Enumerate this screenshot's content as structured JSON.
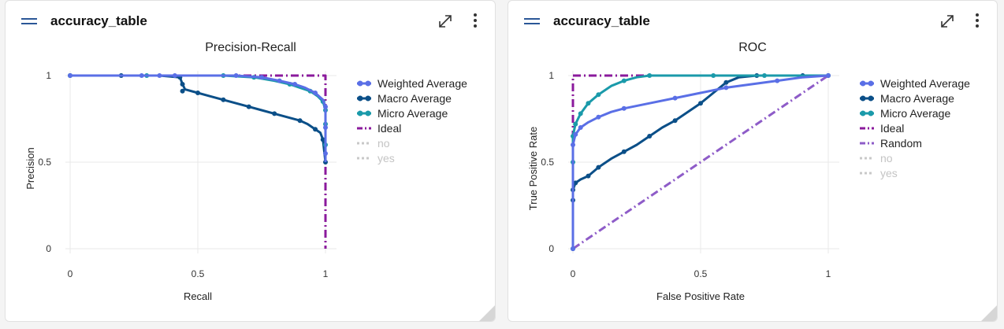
{
  "colors": {
    "weighted": "#5a6fe6",
    "macro": "#0b4f88",
    "micro": "#1a9aaa",
    "ideal": "#8b1a9c",
    "random": "#8e5cc8",
    "dim": "#c8c8c8"
  },
  "icons": {
    "menu": "menu-icon",
    "expand": "expand-icon",
    "more": "more-vertical-icon",
    "resize": "resize-handle-icon"
  },
  "cards": [
    {
      "header_title": "accuracy_table",
      "chart_data": {
        "type": "line",
        "title": "Precision-Recall",
        "xlabel": "Recall",
        "ylabel": "Precision",
        "xlim": [
          0,
          1
        ],
        "ylim": [
          0,
          1
        ],
        "xticks": [
          "0",
          "0.5",
          "1"
        ],
        "yticks": [
          "0",
          "0.5",
          "1"
        ],
        "grid": true,
        "legend_position": "right",
        "legend": [
          {
            "label": "Weighted Average",
            "style": "line-marker",
            "color_key": "weighted",
            "dim": false
          },
          {
            "label": "Macro Average",
            "style": "line-marker",
            "color_key": "macro",
            "dim": false
          },
          {
            "label": "Micro Average",
            "style": "line-marker",
            "color_key": "micro",
            "dim": false
          },
          {
            "label": "Ideal",
            "style": "dashdot",
            "color_key": "ideal",
            "dim": false
          },
          {
            "label": "no",
            "style": "dotted",
            "color_key": "dim",
            "dim": true
          },
          {
            "label": "yes",
            "style": "dotted",
            "color_key": "dim",
            "dim": true
          }
        ],
        "series": [
          {
            "name": "Ideal",
            "color_key": "ideal",
            "style": "dashdot",
            "points": [
              [
                0,
                1
              ],
              [
                1,
                1
              ],
              [
                1,
                0
              ]
            ]
          },
          {
            "name": "Macro Average",
            "color_key": "macro",
            "style": "line-marker",
            "points": [
              [
                0,
                1
              ],
              [
                0.2,
                1
              ],
              [
                0.35,
                1
              ],
              [
                0.43,
                0.99
              ],
              [
                0.44,
                0.95
              ],
              [
                0.45,
                0.92
              ],
              [
                0.5,
                0.9
              ],
              [
                0.55,
                0.88
              ],
              [
                0.6,
                0.86
              ],
              [
                0.65,
                0.84
              ],
              [
                0.7,
                0.82
              ],
              [
                0.75,
                0.8
              ],
              [
                0.8,
                0.78
              ],
              [
                0.85,
                0.76
              ],
              [
                0.9,
                0.74
              ],
              [
                0.93,
                0.72
              ],
              [
                0.96,
                0.69
              ],
              [
                0.98,
                0.67
              ],
              [
                0.99,
                0.63
              ],
              [
                1,
                0.5
              ]
            ],
            "markers": [
              [
                0,
                1
              ],
              [
                0.2,
                1
              ],
              [
                0.43,
                0.99
              ],
              [
                0.44,
                0.95
              ],
              [
                0.44,
                0.91
              ],
              [
                0.5,
                0.9
              ],
              [
                0.6,
                0.86
              ],
              [
                0.7,
                0.82
              ],
              [
                0.8,
                0.78
              ],
              [
                0.9,
                0.74
              ],
              [
                0.96,
                0.69
              ],
              [
                0.99,
                0.63
              ],
              [
                1,
                0.5
              ]
            ]
          },
          {
            "name": "Micro Average",
            "color_key": "micro",
            "style": "line-marker",
            "points": [
              [
                0,
                1
              ],
              [
                0.3,
                1
              ],
              [
                0.6,
                1
              ],
              [
                0.72,
                0.99
              ],
              [
                0.8,
                0.97
              ],
              [
                0.86,
                0.95
              ],
              [
                0.9,
                0.93
              ],
              [
                0.94,
                0.91
              ],
              [
                0.97,
                0.88
              ],
              [
                0.99,
                0.85
              ],
              [
                1,
                0.8
              ],
              [
                1,
                0.5
              ]
            ],
            "markers": [
              [
                0,
                1
              ],
              [
                0.3,
                1
              ],
              [
                0.6,
                1
              ],
              [
                0.72,
                0.99
              ],
              [
                0.86,
                0.95
              ],
              [
                0.94,
                0.91
              ],
              [
                0.99,
                0.85
              ],
              [
                1,
                0.8
              ],
              [
                1,
                0.72
              ],
              [
                1,
                0.6
              ]
            ]
          },
          {
            "name": "Weighted Average",
            "color_key": "weighted",
            "style": "line-marker",
            "points": [
              [
                0,
                1
              ],
              [
                0.3,
                1
              ],
              [
                0.65,
                1
              ],
              [
                0.75,
                0.99
              ],
              [
                0.82,
                0.97
              ],
              [
                0.88,
                0.95
              ],
              [
                0.92,
                0.93
              ],
              [
                0.96,
                0.9
              ],
              [
                0.99,
                0.86
              ],
              [
                1,
                0.82
              ],
              [
                1,
                0.5
              ]
            ],
            "markers": [
              [
                0,
                1
              ],
              [
                0.28,
                1
              ],
              [
                0.35,
                1
              ],
              [
                0.41,
                1
              ],
              [
                0.65,
                1
              ],
              [
                0.75,
                0.99
              ],
              [
                0.82,
                0.97
              ],
              [
                0.88,
                0.95
              ],
              [
                0.96,
                0.9
              ],
              [
                1,
                0.82
              ],
              [
                1,
                0.7
              ],
              [
                1,
                0.55
              ]
            ]
          }
        ]
      }
    },
    {
      "header_title": "accuracy_table",
      "chart_data": {
        "type": "line",
        "title": "ROC",
        "xlabel": "False Positive Rate",
        "ylabel": "True Positive Rate",
        "xlim": [
          0,
          1
        ],
        "ylim": [
          0,
          1
        ],
        "xticks": [
          "0",
          "0.5",
          "1"
        ],
        "yticks": [
          "0",
          "0.5",
          "1"
        ],
        "grid": true,
        "legend_position": "right",
        "legend": [
          {
            "label": "Weighted Average",
            "style": "line-marker",
            "color_key": "weighted",
            "dim": false
          },
          {
            "label": "Macro Average",
            "style": "line-marker",
            "color_key": "macro",
            "dim": false
          },
          {
            "label": "Micro Average",
            "style": "line-marker",
            "color_key": "micro",
            "dim": false
          },
          {
            "label": "Ideal",
            "style": "dashdot",
            "color_key": "ideal",
            "dim": false
          },
          {
            "label": "Random",
            "style": "dashdot",
            "color_key": "random",
            "dim": false
          },
          {
            "label": "no",
            "style": "dotted",
            "color_key": "dim",
            "dim": true
          },
          {
            "label": "yes",
            "style": "dotted",
            "color_key": "dim",
            "dim": true
          }
        ],
        "series": [
          {
            "name": "Random",
            "color_key": "random",
            "style": "dashdot",
            "points": [
              [
                0,
                0
              ],
              [
                1,
                1
              ]
            ]
          },
          {
            "name": "Ideal",
            "color_key": "ideal",
            "style": "dashdot",
            "points": [
              [
                0,
                0
              ],
              [
                0,
                1
              ],
              [
                1,
                1
              ]
            ]
          },
          {
            "name": "Macro Average",
            "color_key": "macro",
            "style": "line-marker",
            "points": [
              [
                0,
                0
              ],
              [
                0,
                0.28
              ],
              [
                0,
                0.34
              ],
              [
                0.01,
                0.38
              ],
              [
                0.03,
                0.4
              ],
              [
                0.06,
                0.42
              ],
              [
                0.1,
                0.47
              ],
              [
                0.15,
                0.52
              ],
              [
                0.2,
                0.56
              ],
              [
                0.25,
                0.6
              ],
              [
                0.3,
                0.65
              ],
              [
                0.35,
                0.7
              ],
              [
                0.4,
                0.74
              ],
              [
                0.45,
                0.79
              ],
              [
                0.5,
                0.84
              ],
              [
                0.55,
                0.9
              ],
              [
                0.6,
                0.96
              ],
              [
                0.65,
                0.99
              ],
              [
                0.72,
                1
              ],
              [
                1,
                1
              ]
            ],
            "markers": [
              [
                0,
                0
              ],
              [
                0,
                0.28
              ],
              [
                0,
                0.34
              ],
              [
                0.01,
                0.38
              ],
              [
                0.06,
                0.42
              ],
              [
                0.1,
                0.47
              ],
              [
                0.2,
                0.56
              ],
              [
                0.3,
                0.65
              ],
              [
                0.4,
                0.74
              ],
              [
                0.5,
                0.84
              ],
              [
                0.6,
                0.96
              ],
              [
                0.72,
                1
              ],
              [
                0.9,
                1
              ],
              [
                1,
                1
              ]
            ]
          },
          {
            "name": "Micro Average",
            "color_key": "micro",
            "style": "line-marker",
            "points": [
              [
                0,
                0
              ],
              [
                0,
                0.5
              ],
              [
                0,
                0.65
              ],
              [
                0.01,
                0.72
              ],
              [
                0.03,
                0.78
              ],
              [
                0.06,
                0.84
              ],
              [
                0.1,
                0.89
              ],
              [
                0.15,
                0.94
              ],
              [
                0.2,
                0.97
              ],
              [
                0.25,
                0.99
              ],
              [
                0.3,
                1
              ],
              [
                1,
                1
              ]
            ],
            "markers": [
              [
                0,
                0
              ],
              [
                0,
                0.5
              ],
              [
                0,
                0.65
              ],
              [
                0.01,
                0.72
              ],
              [
                0.03,
                0.78
              ],
              [
                0.06,
                0.84
              ],
              [
                0.1,
                0.89
              ],
              [
                0.2,
                0.97
              ],
              [
                0.3,
                1
              ],
              [
                0.55,
                1
              ],
              [
                0.75,
                1
              ],
              [
                1,
                1
              ]
            ]
          },
          {
            "name": "Weighted Average",
            "color_key": "weighted",
            "style": "line-marker",
            "points": [
              [
                0,
                0
              ],
              [
                0,
                0.6
              ],
              [
                0.01,
                0.66
              ],
              [
                0.03,
                0.7
              ],
              [
                0.06,
                0.73
              ],
              [
                0.1,
                0.76
              ],
              [
                0.15,
                0.79
              ],
              [
                0.2,
                0.81
              ],
              [
                0.3,
                0.84
              ],
              [
                0.4,
                0.87
              ],
              [
                0.5,
                0.9
              ],
              [
                0.6,
                0.93
              ],
              [
                0.7,
                0.95
              ],
              [
                0.8,
                0.97
              ],
              [
                0.9,
                0.99
              ],
              [
                1,
                1
              ]
            ],
            "markers": [
              [
                0,
                0
              ],
              [
                0,
                0.6
              ],
              [
                0.01,
                0.66
              ],
              [
                0.03,
                0.7
              ],
              [
                0.1,
                0.76
              ],
              [
                0.2,
                0.81
              ],
              [
                0.4,
                0.87
              ],
              [
                0.6,
                0.93
              ],
              [
                0.8,
                0.97
              ],
              [
                1,
                1
              ]
            ]
          }
        ]
      }
    }
  ]
}
